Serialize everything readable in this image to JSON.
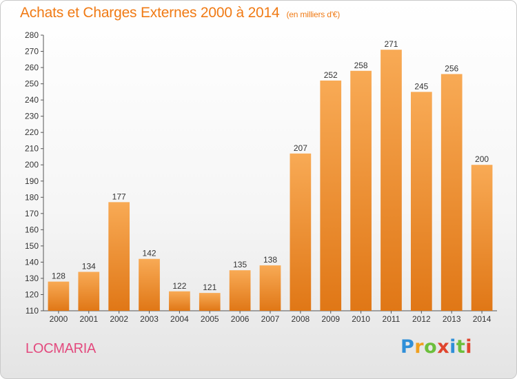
{
  "title": "Achats et Charges Externes 2000 à 2014",
  "subtitle": "(en milliers d'€)",
  "commune": "LOCMARIA",
  "brand": {
    "letters": [
      "P",
      "r",
      "o",
      "x",
      "i",
      "t",
      "i"
    ],
    "colors": [
      "#2f8fd8",
      "#f0a020",
      "#6cbf3c",
      "#e0452e",
      "#2f8fd8",
      "#6cbf3c",
      "#e0452e"
    ]
  },
  "colors": {
    "title": "#f07a14",
    "bar_top": "#f8aa55",
    "bar_bottom": "#e07716",
    "commune": "#e34a7e"
  },
  "chart_data": {
    "type": "bar",
    "categories": [
      "2000",
      "2001",
      "2002",
      "2003",
      "2004",
      "2005",
      "2006",
      "2007",
      "2008",
      "2009",
      "2010",
      "2011",
      "2012",
      "2013",
      "2014"
    ],
    "values": [
      128,
      134,
      177,
      142,
      122,
      121,
      135,
      138,
      207,
      252,
      258,
      271,
      245,
      256,
      200
    ],
    "ylim": [
      110,
      280
    ],
    "yticks": [
      110,
      120,
      130,
      140,
      150,
      160,
      170,
      180,
      190,
      200,
      210,
      220,
      230,
      240,
      250,
      260,
      270,
      280
    ],
    "grid": false,
    "legend": "none"
  }
}
